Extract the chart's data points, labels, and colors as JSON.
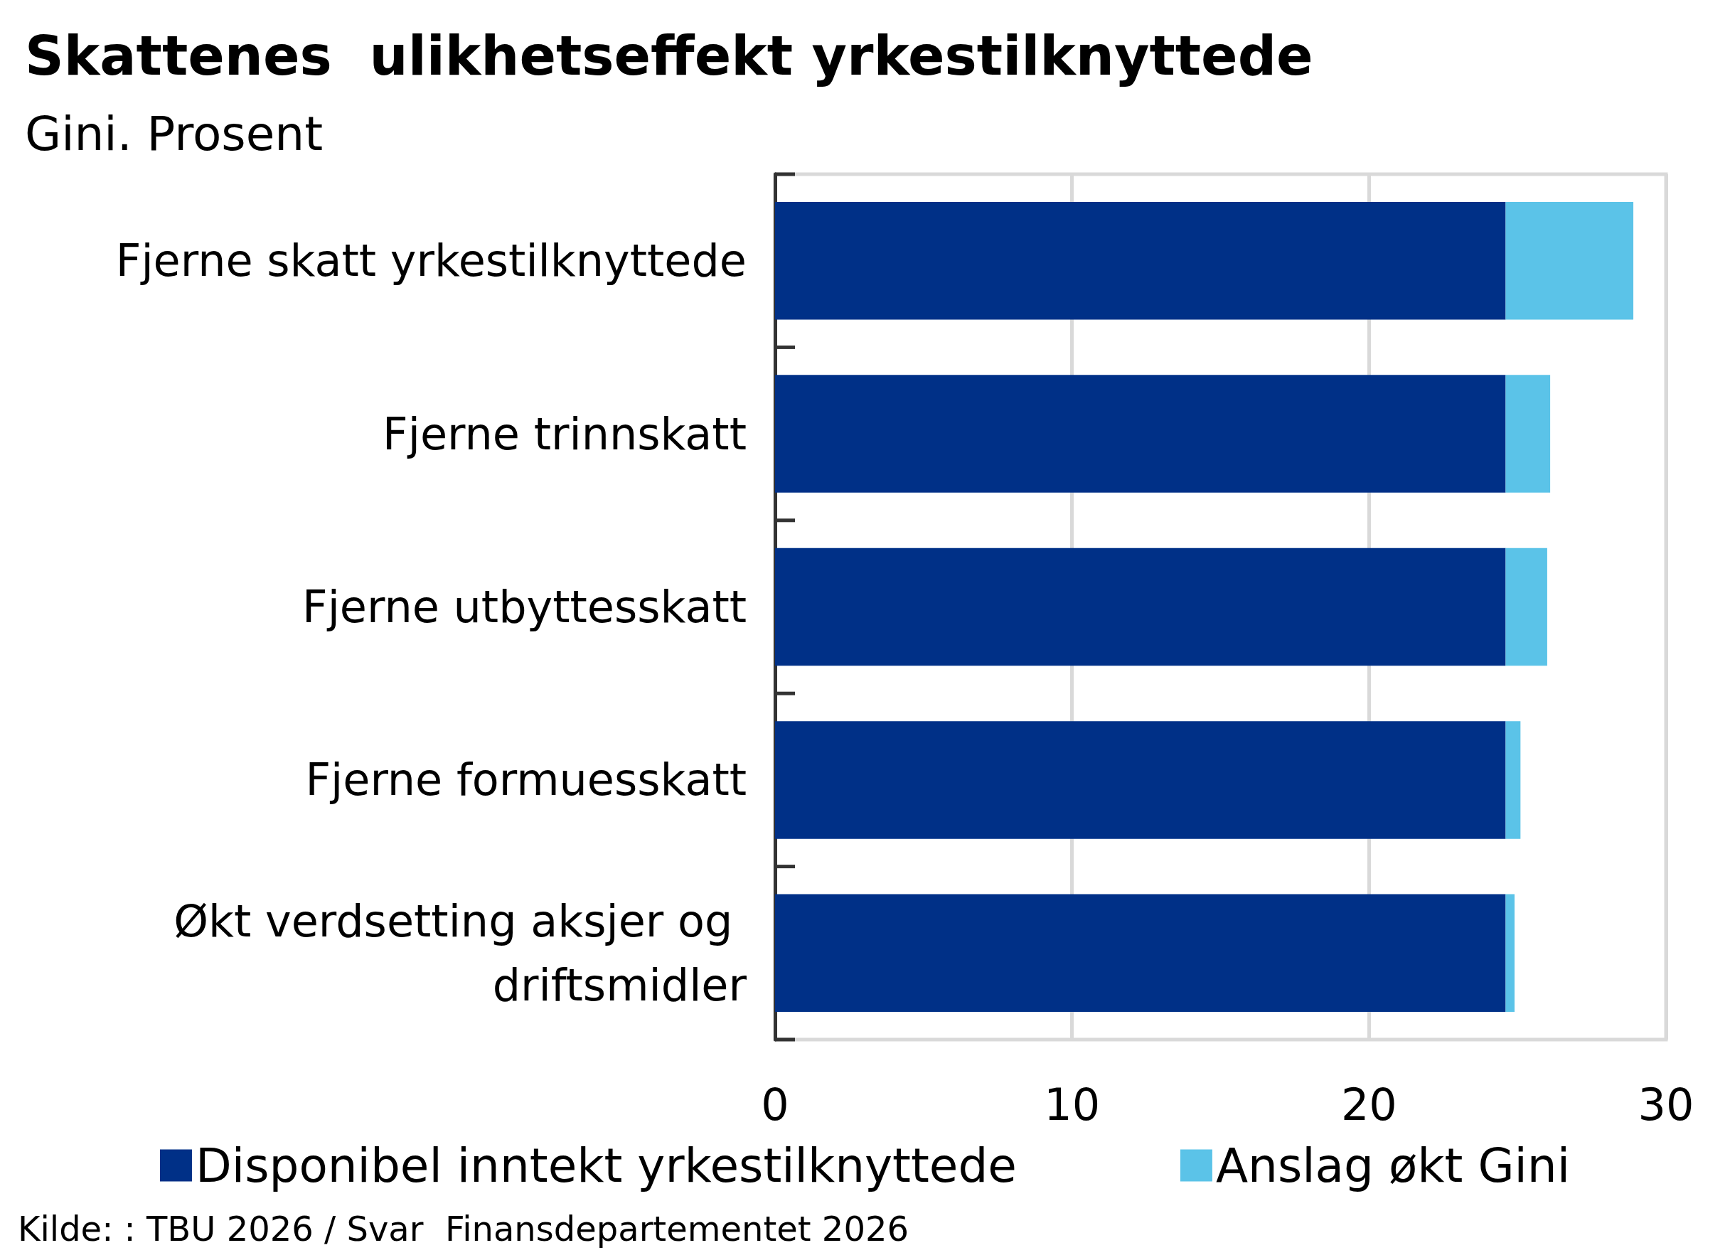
{
  "chart_data": {
    "type": "bar",
    "orientation": "horizontal",
    "stacked": true,
    "title": "Skattenes  ulikhetseffekt yrkestilknyttede",
    "subtitle": "Gini. Prosent",
    "categories": [
      "Fjerne skatt yrkestilknyttede",
      "Fjerne trinnskatt",
      "Fjerne utbyttesskatt",
      "Fjerne formuesskatt",
      "Økt verdsetting aksjer og driftsmidler"
    ],
    "series": [
      {
        "name": "Disponibel inntekt yrkestilknyttede",
        "color": "#003087",
        "values": [
          24.6,
          24.6,
          24.6,
          24.6,
          24.6
        ]
      },
      {
        "name": "Anslag økt Gini",
        "color": "#5bc3e8",
        "values": [
          4.3,
          1.5,
          1.4,
          0.5,
          0.3
        ]
      }
    ],
    "xlim": [
      0,
      30
    ],
    "xticks": [
      0,
      10,
      20,
      30
    ],
    "grid": "x",
    "legend": "bottom",
    "annotations": [
      "Kilde: : TBU 2026 / Svar  Finansdepartementet 2026"
    ]
  }
}
